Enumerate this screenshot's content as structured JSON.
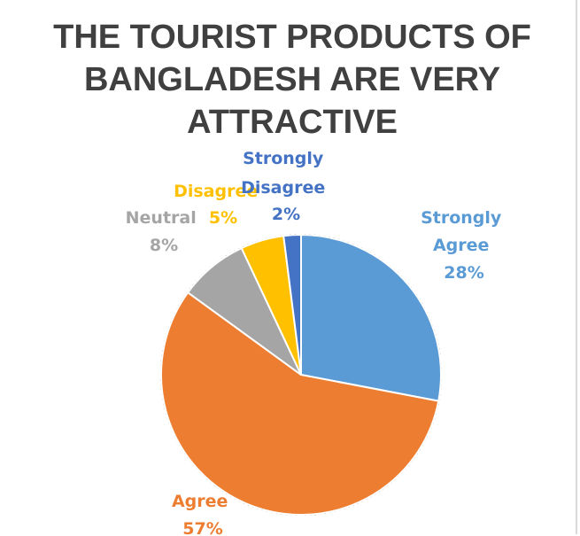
{
  "chart_data": {
    "type": "pie",
    "title_lines": [
      "THE TOURIST PRODUCTS OF",
      "BANGLADESH ARE VERY",
      "ATTRACTIVE"
    ],
    "slices": [
      {
        "label_lines": [
          "Strongly",
          "Agree"
        ],
        "value": 28,
        "value_label": "28%",
        "color": "#5B9BD5"
      },
      {
        "label_lines": [
          "Agree"
        ],
        "value": 57,
        "value_label": "57%",
        "color": "#ED7D31"
      },
      {
        "label_lines": [
          "Neutral"
        ],
        "value": 8,
        "value_label": "8%",
        "color": "#A5A5A5"
      },
      {
        "label_lines": [
          "Disagree"
        ],
        "value": 5,
        "value_label": "5%",
        "color": "#FFC000"
      },
      {
        "label_lines": [
          "Strongly",
          "Disagree"
        ],
        "value": 2,
        "value_label": "2%",
        "color": "#4472C4"
      }
    ]
  }
}
